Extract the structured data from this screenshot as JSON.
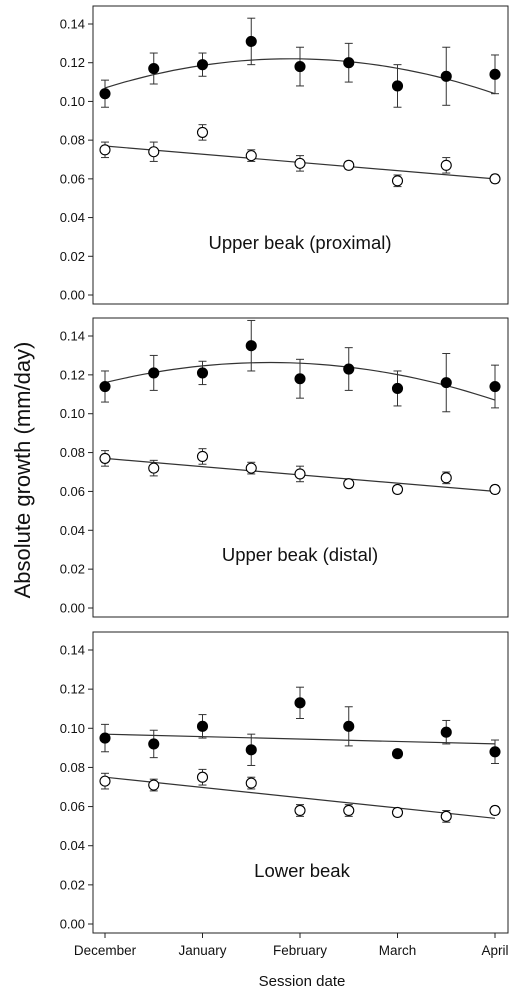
{
  "figure": {
    "ylabel": "Absolute growth (mm/day)",
    "xlabel": "Session date"
  },
  "chart_data": [
    {
      "type": "scatter",
      "title": "Upper beak (proximal)",
      "ylim": [
        0,
        0.14
      ],
      "yticks": [
        "0.00",
        "0.02",
        "0.04",
        "0.06",
        "0.08",
        "0.10",
        "0.12",
        "0.14"
      ],
      "xlim": [
        0,
        8
      ],
      "grid": false,
      "series": [
        {
          "marker": "filled",
          "x": [
            0,
            1,
            2,
            3,
            4,
            5,
            6,
            7,
            8
          ],
          "values": [
            0.104,
            0.117,
            0.119,
            0.131,
            0.118,
            0.12,
            0.108,
            0.113,
            0.114
          ],
          "err": [
            0.007,
            0.008,
            0.006,
            0.012,
            0.01,
            0.01,
            0.011,
            0.015,
            0.01
          ],
          "fit": {
            "kind": "quadratic",
            "x": [
              0,
              4,
              8
            ],
            "y": [
              0.107,
              0.122,
              0.104
            ]
          }
        },
        {
          "marker": "open",
          "x": [
            0,
            1,
            2,
            3,
            4,
            5,
            6,
            7,
            8
          ],
          "values": [
            0.075,
            0.074,
            0.084,
            0.072,
            0.068,
            0.067,
            0.059,
            0.067,
            0.06
          ],
          "err": [
            0.004,
            0.005,
            0.004,
            0.003,
            0.004,
            0.002,
            0.003,
            0.004,
            0.002
          ],
          "fit": {
            "kind": "linear",
            "x": [
              0,
              8
            ],
            "y": [
              0.077,
              0.06
            ]
          }
        }
      ]
    },
    {
      "type": "scatter",
      "title": "Upper beak (distal)",
      "ylim": [
        0,
        0.14
      ],
      "yticks": [
        "0.00",
        "0.02",
        "0.04",
        "0.06",
        "0.08",
        "0.10",
        "0.12",
        "0.14"
      ],
      "xlim": [
        0,
        8
      ],
      "grid": false,
      "series": [
        {
          "marker": "filled",
          "x": [
            0,
            1,
            2,
            3,
            4,
            5,
            6,
            7,
            8
          ],
          "values": [
            0.114,
            0.121,
            0.121,
            0.135,
            0.118,
            0.123,
            0.113,
            0.116,
            0.114
          ],
          "err": [
            0.008,
            0.009,
            0.006,
            0.013,
            0.01,
            0.011,
            0.009,
            0.015,
            0.011
          ],
          "fit": {
            "kind": "quadratic",
            "x": [
              0,
              4,
              8
            ],
            "y": [
              0.116,
              0.126,
              0.107
            ]
          }
        },
        {
          "marker": "open",
          "x": [
            0,
            1,
            2,
            3,
            4,
            5,
            6,
            7,
            8
          ],
          "values": [
            0.077,
            0.072,
            0.078,
            0.072,
            0.069,
            0.064,
            0.061,
            0.067,
            0.061
          ],
          "err": [
            0.004,
            0.004,
            0.004,
            0.003,
            0.004,
            0.002,
            0.002,
            0.003,
            0.002
          ],
          "fit": {
            "kind": "linear",
            "x": [
              0,
              8
            ],
            "y": [
              0.077,
              0.06
            ]
          }
        }
      ]
    },
    {
      "type": "scatter",
      "title": "Lower beak",
      "ylim": [
        0,
        0.14
      ],
      "yticks": [
        "0.00",
        "0.02",
        "0.04",
        "0.06",
        "0.08",
        "0.10",
        "0.12",
        "0.14"
      ],
      "xlim": [
        0,
        8
      ],
      "xticks": {
        "x": [
          0,
          2,
          4,
          6,
          8
        ],
        "labels": [
          "December",
          "January",
          "February",
          "March",
          "April"
        ]
      },
      "grid": false,
      "series": [
        {
          "marker": "filled",
          "x": [
            0,
            1,
            2,
            3,
            4,
            5,
            6,
            7,
            8
          ],
          "values": [
            0.095,
            0.092,
            0.101,
            0.089,
            0.113,
            0.101,
            0.087,
            0.098,
            0.088
          ],
          "err": [
            0.007,
            0.007,
            0.006,
            0.008,
            0.008,
            0.01,
            0.002,
            0.006,
            0.006
          ],
          "fit": {
            "kind": "linear",
            "x": [
              0,
              8
            ],
            "y": [
              0.097,
              0.092
            ]
          }
        },
        {
          "marker": "open",
          "x": [
            0,
            1,
            2,
            3,
            4,
            5,
            6,
            7,
            8
          ],
          "values": [
            0.073,
            0.071,
            0.075,
            0.072,
            0.058,
            0.058,
            0.057,
            0.055,
            0.058
          ],
          "err": [
            0.004,
            0.003,
            0.004,
            0.003,
            0.003,
            0.003,
            0.002,
            0.003,
            0.002
          ],
          "fit": {
            "kind": "linear",
            "x": [
              0,
              8
            ],
            "y": [
              0.075,
              0.054
            ]
          }
        }
      ]
    }
  ]
}
